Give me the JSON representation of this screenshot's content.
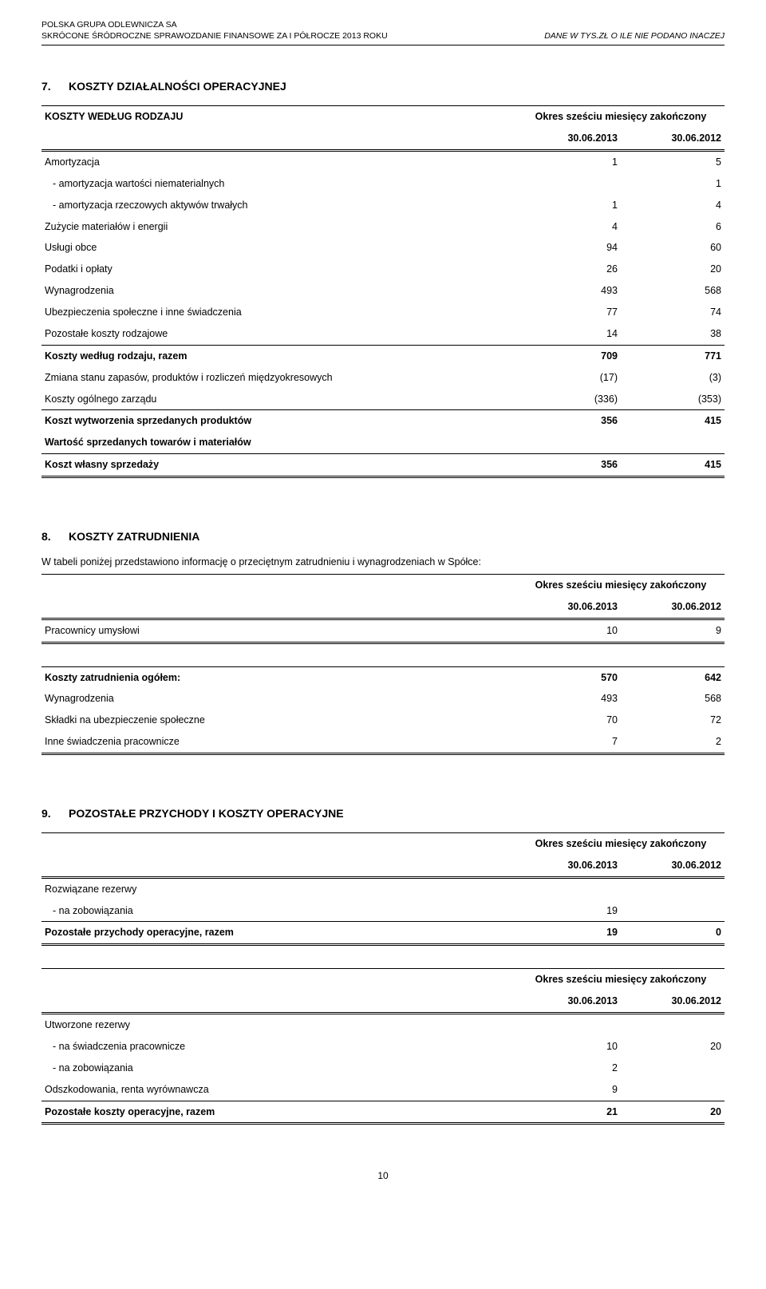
{
  "header": {
    "company": "POLSKA GRUPA ODLEWNICZA SA",
    "subtitle": "SKRÓCONE ŚRÓDROCZNE SPRAWOZDANIE FINANSOWE ZA I PÓŁROCZE 2013 ROKU",
    "right": "DANE W TYS.ZŁ O ILE NIE PODANO INACZEJ"
  },
  "colors": {
    "text": "#000000",
    "background": "#ffffff",
    "rule": "#000000"
  },
  "section7": {
    "num": "7.",
    "title": "KOSZTY DZIAŁALNOŚCI OPERACYJNEJ",
    "subtitle": "KOSZTY WEDŁUG RODZAJU",
    "period_label": "Okres sześciu miesięcy zakończony",
    "period_a": "30.06.2013",
    "period_b": "30.06.2012",
    "rows": [
      {
        "label": "Amortyzacja",
        "a": "1",
        "b": "5",
        "bold": false
      },
      {
        "label": "- amortyzacja wartości niematerialnych",
        "a": "",
        "b": "1",
        "indent": true
      },
      {
        "label": "- amortyzacja rzeczowych aktywów trwałych",
        "a": "1",
        "b": "4",
        "indent": true
      },
      {
        "label": "Zużycie materiałów i energii",
        "a": "4",
        "b": "6"
      },
      {
        "label": "Usługi obce",
        "a": "94",
        "b": "60"
      },
      {
        "label": "Podatki i opłaty",
        "a": "26",
        "b": "20"
      },
      {
        "label": "Wynagrodzenia",
        "a": "493",
        "b": "568"
      },
      {
        "label": "Ubezpieczenia społeczne i inne świadczenia",
        "a": "77",
        "b": "74"
      },
      {
        "label": "Pozostałe koszty rodzajowe",
        "a": "14",
        "b": "38"
      }
    ],
    "subtotal": {
      "label": "Koszty według rodzaju, razem",
      "a": "709",
      "b": "771"
    },
    "adjust": [
      {
        "label": "Zmiana stanu zapasów, produktów i rozliczeń międzyokresowych",
        "a": "(17)",
        "b": "(3)"
      },
      {
        "label": "Koszty ogólnego zarządu",
        "a": "(336)",
        "b": "(353)"
      }
    ],
    "produced": {
      "label": "Koszt wytworzenia sprzedanych produktów",
      "a": "356",
      "b": "415"
    },
    "goods": {
      "label": "Wartość sprzedanych towarów i materiałów",
      "a": "",
      "b": ""
    },
    "total": {
      "label": "Koszt własny sprzedaży",
      "a": "356",
      "b": "415"
    }
  },
  "section8": {
    "num": "8.",
    "title": "KOSZTY ZATRUDNIENIA",
    "intro": "W tabeli poniżej przedstawiono informację o przeciętnym zatrudnieniu i wynagrodzeniach w Spółce:",
    "period_label": "Okres sześciu miesięcy zakończony",
    "period_a": "30.06.2013",
    "period_b": "30.06.2012",
    "head_row": {
      "label": "Pracownicy umysłowi",
      "a": "10",
      "b": "9"
    },
    "cost_block_label": "Koszty zatrudnienia ogółem:",
    "cost_block": [
      {
        "label": "Koszty zatrudnienia ogółem:",
        "a": "570",
        "b": "642",
        "bold": true
      },
      {
        "label": "Wynagrodzenia",
        "a": "493",
        "b": "568"
      },
      {
        "label": "Składki na ubezpieczenie społeczne",
        "a": "70",
        "b": "72"
      },
      {
        "label": "Inne świadczenia pracownicze",
        "a": "7",
        "b": "2"
      }
    ]
  },
  "section9": {
    "num": "9.",
    "title": "POZOSTAŁE PRZYCHODY I KOSZTY OPERACYJNE",
    "period_label": "Okres sześciu miesięcy zakończony",
    "period_a": "30.06.2013",
    "period_b": "30.06.2012",
    "income_head": "Rozwiązane rezerwy",
    "income_rows": [
      {
        "label": "- na zobowiązania",
        "a": "19",
        "b": "",
        "indent": true
      }
    ],
    "income_total": {
      "label": "Pozostałe przychody operacyjne, razem",
      "a": "19",
      "b": "0"
    },
    "cost_head": "Utworzone rezerwy",
    "cost_rows": [
      {
        "label": "- na świadczenia pracownicze",
        "a": "10",
        "b": "20",
        "indent": true
      },
      {
        "label": "- na zobowiązania",
        "a": "2",
        "b": "",
        "indent": true
      },
      {
        "label": "Odszkodowania, renta wyrównawcza",
        "a": "9",
        "b": ""
      }
    ],
    "cost_total": {
      "label": "Pozostałe koszty operacyjne, razem",
      "a": "21",
      "b": "20"
    }
  },
  "page_number": "10"
}
